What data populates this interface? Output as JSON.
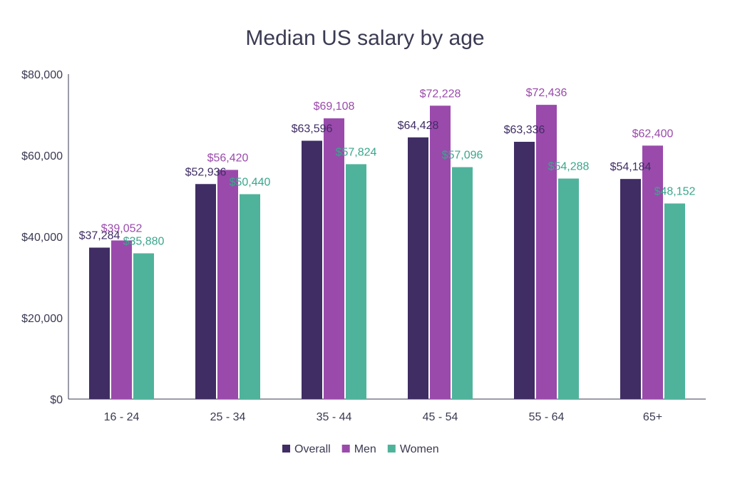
{
  "chart_data": {
    "type": "bar",
    "title": "Median US salary by age",
    "xlabel": "",
    "ylabel": "",
    "categories": [
      "16 - 24",
      "25 - 34",
      "35 - 44",
      "45 - 54",
      "55 - 64",
      "65+"
    ],
    "series": [
      {
        "name": "Overall",
        "color": "#3f2d64",
        "label_color": "#3f2d64",
        "values": [
          37284,
          52936,
          63596,
          64428,
          63336,
          54184
        ],
        "labels": [
          "$37,284",
          "$52,936",
          "$63,596",
          "$64,428",
          "$63,336",
          "$54,184"
        ]
      },
      {
        "name": "Men",
        "color": "#9a4aab",
        "label_color": "#9a4aab",
        "values": [
          39052,
          56420,
          69108,
          72228,
          72436,
          62400
        ],
        "labels": [
          "$39,052",
          "$56,420",
          "$69,108",
          "$72,228",
          "$72,436",
          "$62,400"
        ]
      },
      {
        "name": "Women",
        "color": "#4fb39b",
        "label_color": "#3aa68c",
        "values": [
          35880,
          50440,
          57824,
          57096,
          54288,
          48152
        ],
        "labels": [
          "$35,880",
          "$50,440",
          "$57,824",
          "$57,096",
          "$54,288",
          "$48,152"
        ]
      }
    ],
    "ylim": [
      0,
      80000
    ],
    "yticks": [
      0,
      20000,
      40000,
      60000,
      80000
    ],
    "ytick_labels": [
      "$0",
      "$20,000",
      "$40,000",
      "$60,000",
      "$80,000"
    ],
    "grid": false,
    "legend_position": "bottom-center"
  }
}
